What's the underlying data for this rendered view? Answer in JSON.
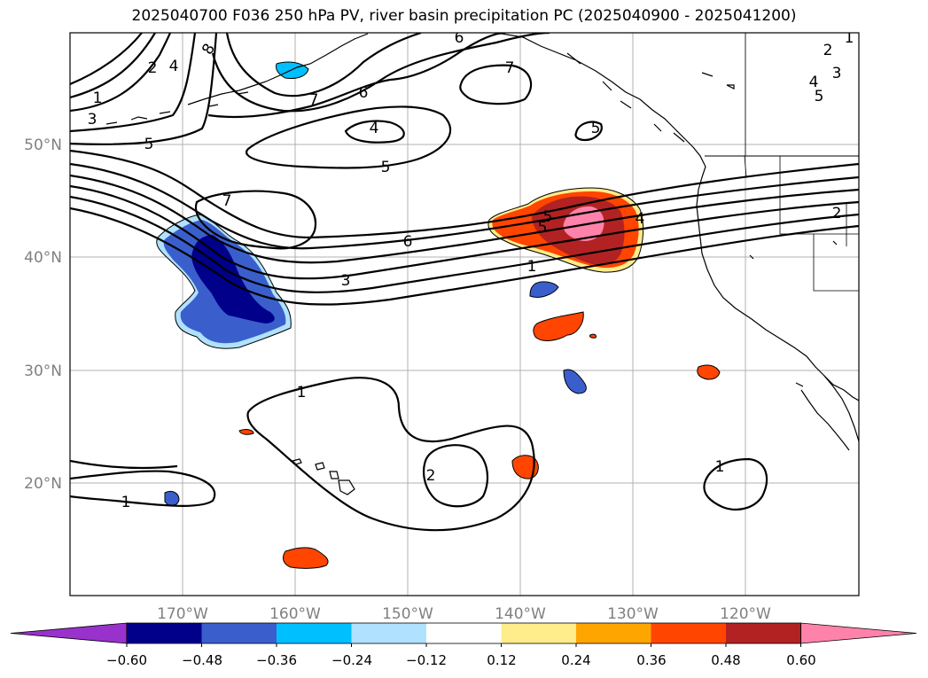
{
  "title": "2025040700 F036 250 hPa PV, river basin precipitation PC (2025040900 - 2025041200)",
  "axes": {
    "lon_labels": [
      "170°W",
      "160°W",
      "150°W",
      "140°W",
      "130°W",
      "120°W"
    ],
    "lat_labels": [
      "50°N",
      "40°N",
      "30°N",
      "20°N"
    ],
    "gridlines": true,
    "tick_label_color": "#808080"
  },
  "pv_contour_labels": [
    "6",
    "7",
    "8",
    "4",
    "2",
    "1",
    "3",
    "5",
    "6",
    "5",
    "7",
    "4",
    "5",
    "5",
    "3",
    "2",
    "1",
    "4",
    "5",
    "2",
    "3",
    "1",
    "7",
    "6",
    "5",
    "4",
    "1",
    "2",
    "1",
    "1"
  ],
  "colorbar": {
    "ticks": [
      "−0.60",
      "−0.48",
      "−0.36",
      "−0.24",
      "−0.12",
      "0.12",
      "0.24",
      "0.36",
      "0.48",
      "0.60"
    ],
    "colors": [
      "#9932cc",
      "#00008b",
      "#3a5fcd",
      "#00bfff",
      "#b0e2ff",
      "#ffffff",
      "#ffec8b",
      "#ffa500",
      "#ff4500",
      "#b22222",
      "#ff82ab"
    ],
    "extend": "both"
  },
  "chart_data": {
    "type": "heatmap",
    "title": "2025040700 F036 250 hPa PV, river basin precipitation PC (2025040900 - 2025041200)",
    "xlabel": "",
    "ylabel": "",
    "xlim": [
      "180°W",
      "110°W"
    ],
    "ylim": [
      "10°N",
      "60°N"
    ],
    "grid": true,
    "contour_field": "250 hPa PV",
    "contour_levels": [
      1,
      2,
      3,
      4,
      5,
      6,
      7,
      8
    ],
    "fill_field": "river basin precipitation PC",
    "fill_levels": [
      -0.6,
      -0.48,
      -0.36,
      -0.24,
      -0.12,
      0.12,
      0.24,
      0.36,
      0.48,
      0.6
    ]
  }
}
